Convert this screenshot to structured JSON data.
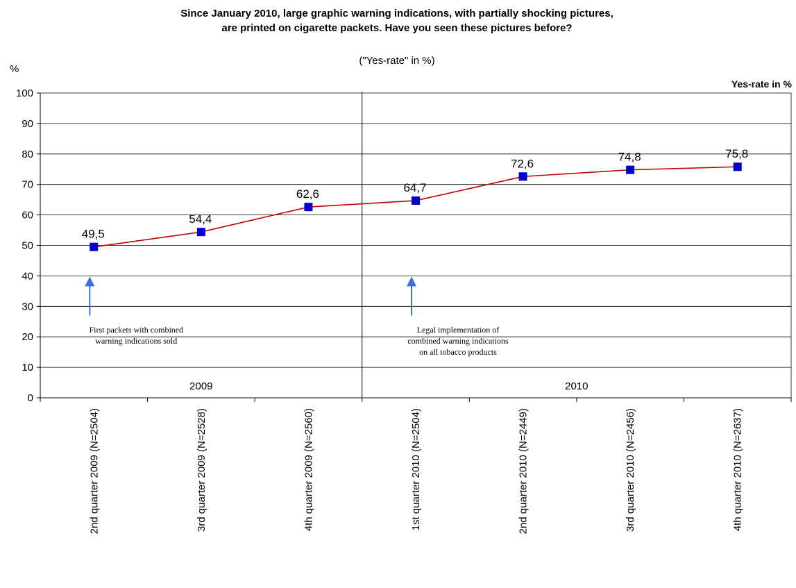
{
  "chart_data": {
    "type": "line",
    "title_line1": "Since January 2010, large graphic warning indications, with partially shocking pictures,",
    "title_line2": "are printed on cigarette packets. Have you seen these pictures before?",
    "subtitle": "(\"Yes-rate\" in %)",
    "ylabel": "%",
    "series_label": "Yes-rate in %",
    "ylim": [
      0,
      100
    ],
    "yticks": [
      0,
      10,
      20,
      30,
      40,
      50,
      60,
      70,
      80,
      90,
      100
    ],
    "categories": [
      "2nd quarter 2009 (N=2504)",
      "3rd quarter 2009 (N=2528)",
      "4th quarter 2009 (N=2560)",
      "1st quarter 2010 (N=2504)",
      "2nd quarter 2010 (N=2449)",
      "3rd quarter 2010 (N=2456)",
      "4th quarter 2010 (N=2637)"
    ],
    "values": [
      49.5,
      54.4,
      62.6,
      64.7,
      72.6,
      74.8,
      75.8
    ],
    "value_labels": [
      "49,5",
      "54,4",
      "62,6",
      "64,7",
      "72,6",
      "74,8",
      "75,8"
    ],
    "year_groups": [
      {
        "label": "2009",
        "span": 3
      },
      {
        "label": "2010",
        "span": 4
      }
    ],
    "annotations": [
      {
        "category_index": 0,
        "value": 40,
        "lines": [
          "First packets with combined",
          "warning indications sold"
        ]
      },
      {
        "category_index": 3,
        "value": 40,
        "lines": [
          "Legal implementation of",
          "combined warning indications",
          "on all tobacco products"
        ]
      }
    ],
    "colors": {
      "line": "#c00000",
      "marker": "#0000cc",
      "arrow": "#3b6fe0",
      "grid": "#000000"
    },
    "grid": true
  }
}
